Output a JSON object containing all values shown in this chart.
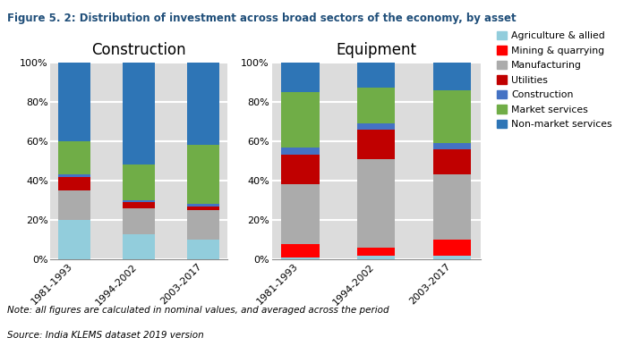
{
  "title": "Figure 5. 2: Distribution of investment across broad sectors of the economy, by asset",
  "periods": [
    "1981-1993",
    "1994-2002",
    "2003-2017"
  ],
  "construction_title": "Construction",
  "equipment_title": "Equipment",
  "categories": [
    "Agriculture & allied",
    "Mining & quarrying",
    "Manufacturing",
    "Utilities",
    "Construction",
    "Market services",
    "Non-market services"
  ],
  "colors": [
    "#92CDDC",
    "#FF0000",
    "#ABABAB",
    "#C00000",
    "#4472C4",
    "#70AD47",
    "#2E75B6"
  ],
  "construction_data": {
    "Agriculture & allied": [
      20,
      13,
      10
    ],
    "Mining & quarrying": [
      0,
      0,
      0
    ],
    "Manufacturing": [
      15,
      13,
      15
    ],
    "Utilities": [
      7,
      3,
      2
    ],
    "Construction": [
      1,
      1,
      1
    ],
    "Market services": [
      17,
      18,
      30
    ],
    "Non-market services": [
      40,
      52,
      42
    ]
  },
  "equipment_data": {
    "Agriculture & allied": [
      1,
      2,
      2
    ],
    "Mining & quarrying": [
      7,
      4,
      8
    ],
    "Manufacturing": [
      30,
      45,
      33
    ],
    "Utilities": [
      15,
      15,
      13
    ],
    "Construction": [
      4,
      3,
      3
    ],
    "Market services": [
      28,
      18,
      27
    ],
    "Non-market services": [
      15,
      13,
      14
    ]
  },
  "note": "Note: all figures are calculated in nominal values, and averaged across the period",
  "source": "Source: India KLEMS dataset 2019 version",
  "yticks": [
    0,
    20,
    40,
    60,
    80,
    100
  ],
  "ytick_labels": [
    "0%",
    "20%",
    "40%",
    "60%",
    "80%",
    "100%"
  ]
}
